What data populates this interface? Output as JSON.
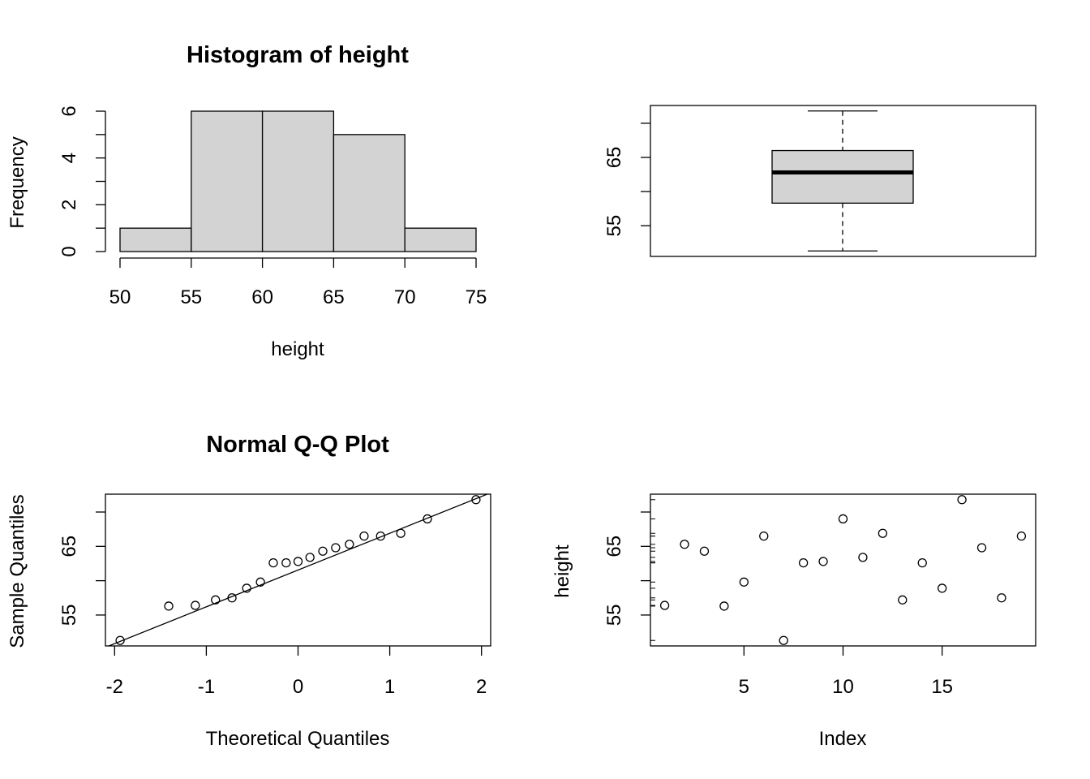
{
  "chart_data": [
    {
      "panel": "histogram",
      "type": "bar",
      "title": "Histogram of height",
      "xlabel": "height",
      "ylabel": "Frequency",
      "bins": [
        {
          "from": 50,
          "to": 55,
          "count": 1
        },
        {
          "from": 55,
          "to": 60,
          "count": 6
        },
        {
          "from": 60,
          "to": 65,
          "count": 6
        },
        {
          "from": 65,
          "to": 70,
          "count": 5
        },
        {
          "from": 70,
          "to": 75,
          "count": 1
        }
      ],
      "xticks": [
        50,
        55,
        60,
        65,
        70,
        75
      ],
      "yticks": [
        0,
        2,
        4,
        6
      ],
      "xlim": [
        50,
        75
      ],
      "ylim": [
        0,
        6
      ],
      "fill": "#d3d3d3"
    },
    {
      "panel": "boxplot",
      "type": "box",
      "min": 51.3,
      "q1": 58.3,
      "median": 62.8,
      "q3": 66.0,
      "max": 71.8,
      "yticks": [
        55,
        65
      ],
      "ylim": [
        50.5,
        72.6
      ],
      "fill": "#d3d3d3"
    },
    {
      "panel": "qqplot",
      "type": "scatter",
      "title": "Normal Q-Q Plot",
      "xlabel": "Theoretical Quantiles",
      "ylabel": "Sample Quantiles",
      "points": [
        {
          "x": -1.94,
          "y": 51.3
        },
        {
          "x": -1.41,
          "y": 56.3
        },
        {
          "x": -1.12,
          "y": 56.4
        },
        {
          "x": -0.9,
          "y": 57.2
        },
        {
          "x": -0.72,
          "y": 57.5
        },
        {
          "x": -0.56,
          "y": 58.9
        },
        {
          "x": -0.41,
          "y": 59.8
        },
        {
          "x": -0.27,
          "y": 62.6
        },
        {
          "x": -0.13,
          "y": 62.6
        },
        {
          "x": 0.0,
          "y": 62.8
        },
        {
          "x": 0.13,
          "y": 63.4
        },
        {
          "x": 0.27,
          "y": 64.3
        },
        {
          "x": 0.41,
          "y": 64.8
        },
        {
          "x": 0.56,
          "y": 65.3
        },
        {
          "x": 0.72,
          "y": 66.5
        },
        {
          "x": 0.9,
          "y": 66.5
        },
        {
          "x": 1.12,
          "y": 66.9
        },
        {
          "x": 1.41,
          "y": 69.0
        },
        {
          "x": 1.94,
          "y": 71.8
        }
      ],
      "line": {
        "x1": -2.1,
        "y1": 50.3,
        "x2": 2.1,
        "y2": 72.8
      },
      "xticks": [
        -2,
        -1,
        0,
        1,
        2
      ],
      "yticks": [
        55,
        65
      ],
      "xlim": [
        -2.1,
        2.1
      ],
      "ylim": [
        50.5,
        72.6
      ]
    },
    {
      "panel": "index-plot",
      "type": "scatter",
      "xlabel": "Index",
      "ylabel": "height",
      "x": [
        1,
        2,
        3,
        4,
        5,
        6,
        7,
        8,
        9,
        10,
        11,
        12,
        13,
        14,
        15,
        16,
        17,
        18,
        19
      ],
      "y": [
        56.4,
        65.3,
        64.3,
        56.3,
        59.8,
        66.5,
        51.3,
        62.6,
        62.8,
        69.0,
        63.4,
        66.9,
        57.2,
        62.6,
        58.9,
        71.8,
        64.8,
        57.5,
        66.5
      ],
      "xticks": [
        5,
        10,
        15
      ],
      "yticks": [
        55,
        65
      ],
      "xlim": [
        0.28,
        19.72
      ],
      "ylim": [
        50.5,
        72.6
      ]
    }
  ]
}
